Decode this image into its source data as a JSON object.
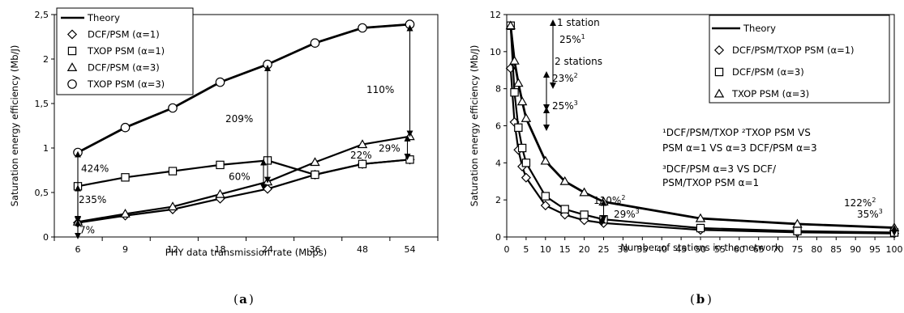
{
  "chart_data": [
    {
      "type": "line",
      "caption": "a",
      "xlabel": "PHY data transmission rate (Mbps)",
      "ylabel": "Saturation energy efficiency (Mb/J)",
      "categories": [
        "6",
        "9",
        "12",
        "18",
        "24",
        "36",
        "48",
        "54"
      ],
      "ylim": [
        0,
        2.5
      ],
      "yticks": [
        "0",
        "0,5",
        "1",
        "1,5",
        "2",
        "2,5"
      ],
      "legend": {
        "placement": "top-left"
      },
      "series": [
        {
          "name": "Theory",
          "marker": "none",
          "values": [
            0.95,
            1.23,
            1.45,
            1.74,
            1.94,
            2.18,
            2.35,
            2.39
          ]
        },
        {
          "name": "DCF/PSM (α=1)",
          "marker": "diamond",
          "values": [
            0.16,
            0.24,
            0.31,
            0.43,
            0.54,
            0.7,
            0.82,
            0.87
          ]
        },
        {
          "name": "TXOP PSM (α=1)",
          "marker": "square",
          "values": [
            0.57,
            0.67,
            0.74,
            0.81,
            0.86,
            0.7,
            0.82,
            0.87
          ]
        },
        {
          "name": "DCF/PSM (α=3)",
          "marker": "triangle",
          "values": [
            0.17,
            0.26,
            0.34,
            0.48,
            0.62,
            0.84,
            1.04,
            1.13
          ]
        },
        {
          "name": "TXOP PSM (α=3)",
          "marker": "circle",
          "values": [
            0.95,
            1.23,
            1.45,
            1.74,
            1.94,
            2.18,
            2.35,
            2.39
          ]
        }
      ],
      "annotations": [
        "424%",
        "235%",
        "7%",
        "209%",
        "60%",
        "22%",
        "29%",
        "110%"
      ]
    },
    {
      "type": "line",
      "caption": "b",
      "xlabel": "Number of stations in the network",
      "ylabel": "Saturation energy efficiency (Mb/J)",
      "xticks": [
        "0",
        "5",
        "10",
        "15",
        "20",
        "25",
        "30",
        "35",
        "40",
        "45",
        "50",
        "55",
        "60",
        "65",
        "70",
        "75",
        "80",
        "85",
        "90",
        "95",
        "100"
      ],
      "xlim": [
        0,
        100
      ],
      "ylim": [
        0,
        12
      ],
      "yticks": [
        "0",
        "2",
        "4",
        "6",
        "8",
        "10",
        "12"
      ],
      "legend": {
        "placement": "top-right"
      },
      "series": [
        {
          "name": "Theory",
          "marker": "none",
          "x": [
            1,
            2,
            3,
            4,
            5,
            10,
            15,
            20,
            25,
            50,
            75,
            100
          ],
          "values": [
            11.4,
            9.5,
            8.3,
            7.3,
            6.4,
            4.1,
            3.0,
            2.4,
            1.9,
            1.0,
            0.7,
            0.5
          ]
        },
        {
          "name": "DCF/PSM/TXOP PSM (α=1)",
          "marker": "diamond",
          "x": [
            1,
            2,
            3,
            4,
            5,
            10,
            15,
            20,
            25,
            50,
            75,
            100
          ],
          "values": [
            9.1,
            6.2,
            4.7,
            3.8,
            3.2,
            1.7,
            1.2,
            0.9,
            0.75,
            0.38,
            0.25,
            0.19
          ]
        },
        {
          "name": "DCF/PSM (α=3)",
          "marker": "square",
          "x": [
            1,
            2,
            3,
            4,
            5,
            10,
            15,
            20,
            25,
            50,
            75,
            100
          ],
          "values": [
            11.4,
            7.8,
            5.9,
            4.8,
            4.0,
            2.2,
            1.5,
            1.2,
            0.95,
            0.48,
            0.32,
            0.24
          ]
        },
        {
          "name": "TXOP PSM (α=3)",
          "marker": "triangle",
          "x": [
            1,
            2,
            3,
            4,
            5,
            10,
            15,
            20,
            25,
            50,
            75,
            100
          ],
          "values": [
            11.4,
            9.5,
            8.3,
            7.3,
            6.4,
            4.1,
            3.0,
            2.4,
            1.9,
            1.0,
            0.7,
            0.5
          ]
        }
      ],
      "annotations": {
        "one_station": "1 station",
        "two_stations": "2 stations",
        "p1": "25%",
        "p1_sup": "1",
        "p2": "23%",
        "p2_sup": "2",
        "p3": "25%",
        "p3_sup": "3",
        "p4": "110%",
        "p4_sup": "2",
        "p5": "29%",
        "p5_sup": "3",
        "p6": "122%",
        "p6_sup": "2",
        "p7": "35%",
        "p7_sup": "3",
        "note_line1": "¹DCF/PSM/TXOP  ²TXOP PSM VS",
        "note_line2": "PSM α=1 VS α=3  DCF/PSM α=3",
        "note_line3": "³DCF/PSM α=3 VS DCF/",
        "note_line4": "PSM/TXOP PSM α=1"
      }
    }
  ]
}
